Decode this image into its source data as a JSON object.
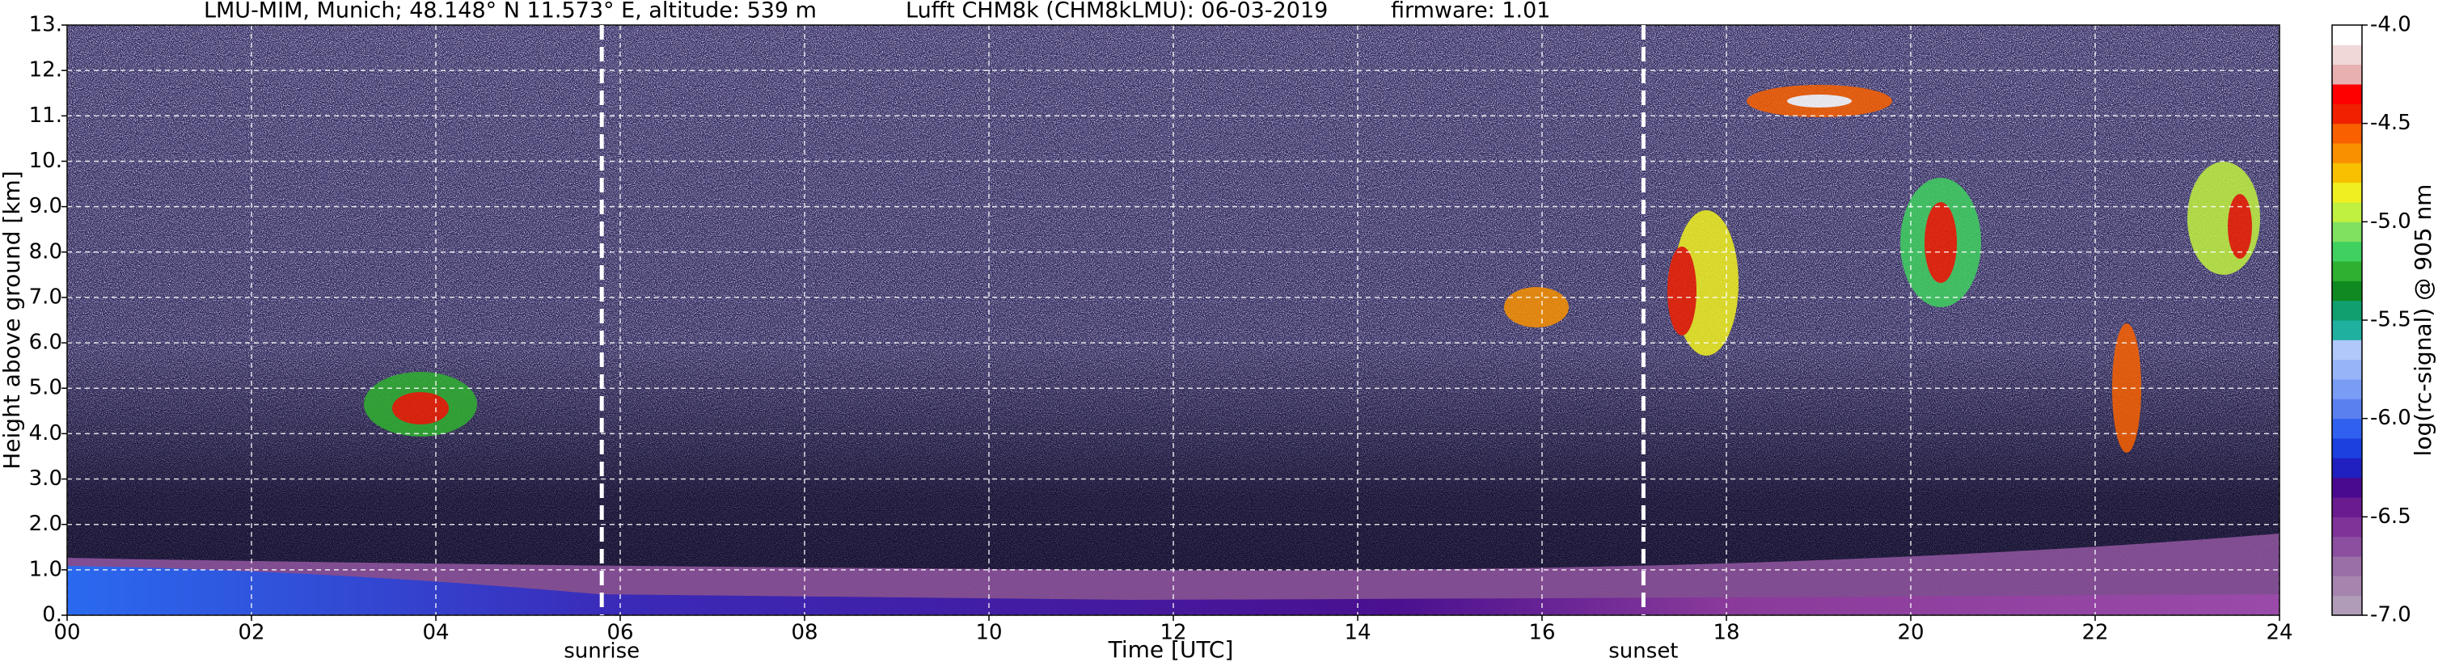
{
  "chart_data": {
    "type": "heatmap",
    "title": [
      "LMU-MIM, Munich; 48.148° N 11.573° E, altitude: 539 m",
      "Lufft CHM8k (CHM8kLMU): 06-03-2019",
      "firmware: 1.01"
    ],
    "xlabel": "Time [UTC]",
    "ylabel": "Height above ground [km]",
    "xlim": [
      0,
      24
    ],
    "xticks": [
      {
        "value": 0,
        "label": "00"
      },
      {
        "value": 2,
        "label": "02"
      },
      {
        "value": 4,
        "label": "04"
      },
      {
        "value": 6,
        "label": "06"
      },
      {
        "value": 8,
        "label": "08"
      },
      {
        "value": 10,
        "label": "10"
      },
      {
        "value": 12,
        "label": "12"
      },
      {
        "value": 14,
        "label": "14"
      },
      {
        "value": 16,
        "label": "16"
      },
      {
        "value": 18,
        "label": "18"
      },
      {
        "value": 20,
        "label": "20"
      },
      {
        "value": 22,
        "label": "22"
      },
      {
        "value": 24,
        "label": "24"
      }
    ],
    "ylim": [
      0,
      13
    ],
    "yticks": [
      {
        "value": 0,
        "label": "0."
      },
      {
        "value": 1,
        "label": "1.0"
      },
      {
        "value": 2,
        "label": "2.0"
      },
      {
        "value": 3,
        "label": "3.0"
      },
      {
        "value": 4,
        "label": "4.0"
      },
      {
        "value": 5,
        "label": "5.0"
      },
      {
        "value": 6,
        "label": "6.0"
      },
      {
        "value": 7,
        "label": "7.0"
      },
      {
        "value": 8,
        "label": "8.0"
      },
      {
        "value": 9,
        "label": "9.0"
      },
      {
        "value": 10,
        "label": "10."
      },
      {
        "value": 11,
        "label": "11."
      },
      {
        "value": 12,
        "label": "12."
      },
      {
        "value": 13,
        "label": "13."
      }
    ],
    "grid": true,
    "annotations": [
      {
        "x": 5.8,
        "label": "sunrise"
      },
      {
        "x": 17.1,
        "label": "sunset"
      }
    ],
    "colorbar": {
      "label": "log(rc-signal) @ 905 nm",
      "lim": [
        -7,
        -4
      ],
      "ticks": [
        {
          "value": -7,
          "label": "-7.0"
        },
        {
          "value": -6.5,
          "label": "-6.5"
        },
        {
          "value": -6,
          "label": "-6.0"
        },
        {
          "value": -5.5,
          "label": "-5.5"
        },
        {
          "value": -5,
          "label": "-5.0"
        },
        {
          "value": -4.5,
          "label": "-4.5"
        },
        {
          "value": -4,
          "label": "-4.0"
        }
      ],
      "colors": [
        "#b09cb8",
        "#a585ad",
        "#9a6ea6",
        "#8c4fa0",
        "#7f3399",
        "#6a1b8f",
        "#4a0a90",
        "#2020c0",
        "#1a40e0",
        "#3060f0",
        "#5a80f0",
        "#7a9cf5",
        "#98b4f8",
        "#b0c8fa",
        "#20b0a0",
        "#10a070",
        "#108a20",
        "#30b030",
        "#40d060",
        "#80e060",
        "#c0f040",
        "#f0f020",
        "#f8c000",
        "#f89000",
        "#f86000",
        "#f02000",
        "#ff0000",
        "#e8b0b0",
        "#f0d8d8",
        "#ffffff"
      ]
    }
  }
}
